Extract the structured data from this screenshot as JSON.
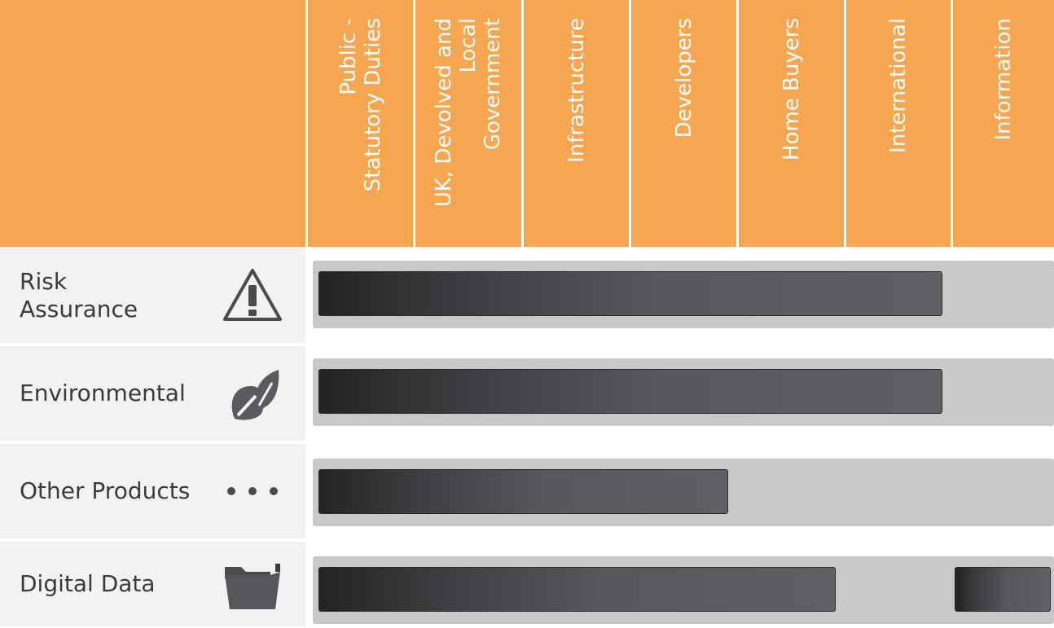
{
  "columns": [
    {
      "label": "Public -\nStatutory Duties"
    },
    {
      "label": "UK, Devolved and\nLocal\nGovernment"
    },
    {
      "label": "Infrastructure"
    },
    {
      "label": "Developers"
    },
    {
      "label": "Home Buyers"
    },
    {
      "label": "International"
    },
    {
      "label": "Information"
    }
  ],
  "rows": [
    {
      "label": "Risk\nAssurance",
      "icon": "warning-triangle-icon"
    },
    {
      "label": "Environmental",
      "icon": "leaf-icon"
    },
    {
      "label": "Other Products",
      "icon": "ellipsis-icon"
    },
    {
      "label": "Digital Data",
      "icon": "folder-icon"
    }
  ],
  "colors": {
    "header": "#f6a550",
    "track": "#c8c8ca",
    "bar": "#4b4c50",
    "row_bg": "#f2f2f3"
  },
  "chart_data": {
    "type": "bar",
    "orientation": "horizontal-span",
    "categories": [
      "Public - Statutory Duties",
      "UK, Devolved and Local Government",
      "Infrastructure",
      "Developers",
      "Home Buyers",
      "International",
      "Information"
    ],
    "series": [
      {
        "row": "Risk Assurance",
        "spans": [
          [
            1,
            6
          ]
        ]
      },
      {
        "row": "Environmental",
        "spans": [
          [
            1,
            6
          ]
        ]
      },
      {
        "row": "Other Products",
        "spans": [
          [
            1,
            4
          ]
        ]
      },
      {
        "row": "Digital Data",
        "spans": [
          [
            1,
            5
          ],
          [
            7,
            7
          ]
        ]
      }
    ]
  }
}
